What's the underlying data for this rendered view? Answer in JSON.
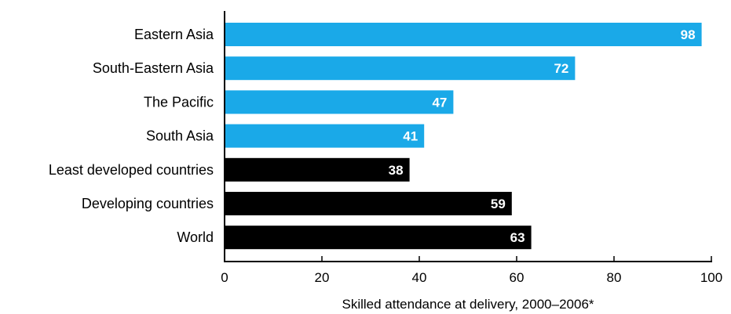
{
  "chart_data": {
    "type": "bar",
    "orientation": "horizontal",
    "categories": [
      "Eastern Asia",
      "South-Eastern Asia",
      "The Pacific",
      "South Asia",
      "Least developed countries",
      "Developing countries",
      "World"
    ],
    "values": [
      98,
      72,
      47,
      41,
      38,
      59,
      63
    ],
    "bar_colors": [
      "#1aa9e8",
      "#1aa9e8",
      "#1aa9e8",
      "#1aa9e8",
      "#000000",
      "#000000",
      "#000000"
    ],
    "xlabel": "Skilled attendance at delivery, 2000–2006*",
    "ylabel": "",
    "xlim": [
      0,
      100
    ],
    "xticks": [
      0,
      20,
      40,
      60,
      80,
      100
    ],
    "xtick_labels": [
      "0",
      "20",
      "40",
      "60",
      "80",
      "100"
    ],
    "grid": false,
    "data_labels": [
      "98",
      "72",
      "47",
      "41",
      "38",
      "59",
      "63"
    ]
  }
}
